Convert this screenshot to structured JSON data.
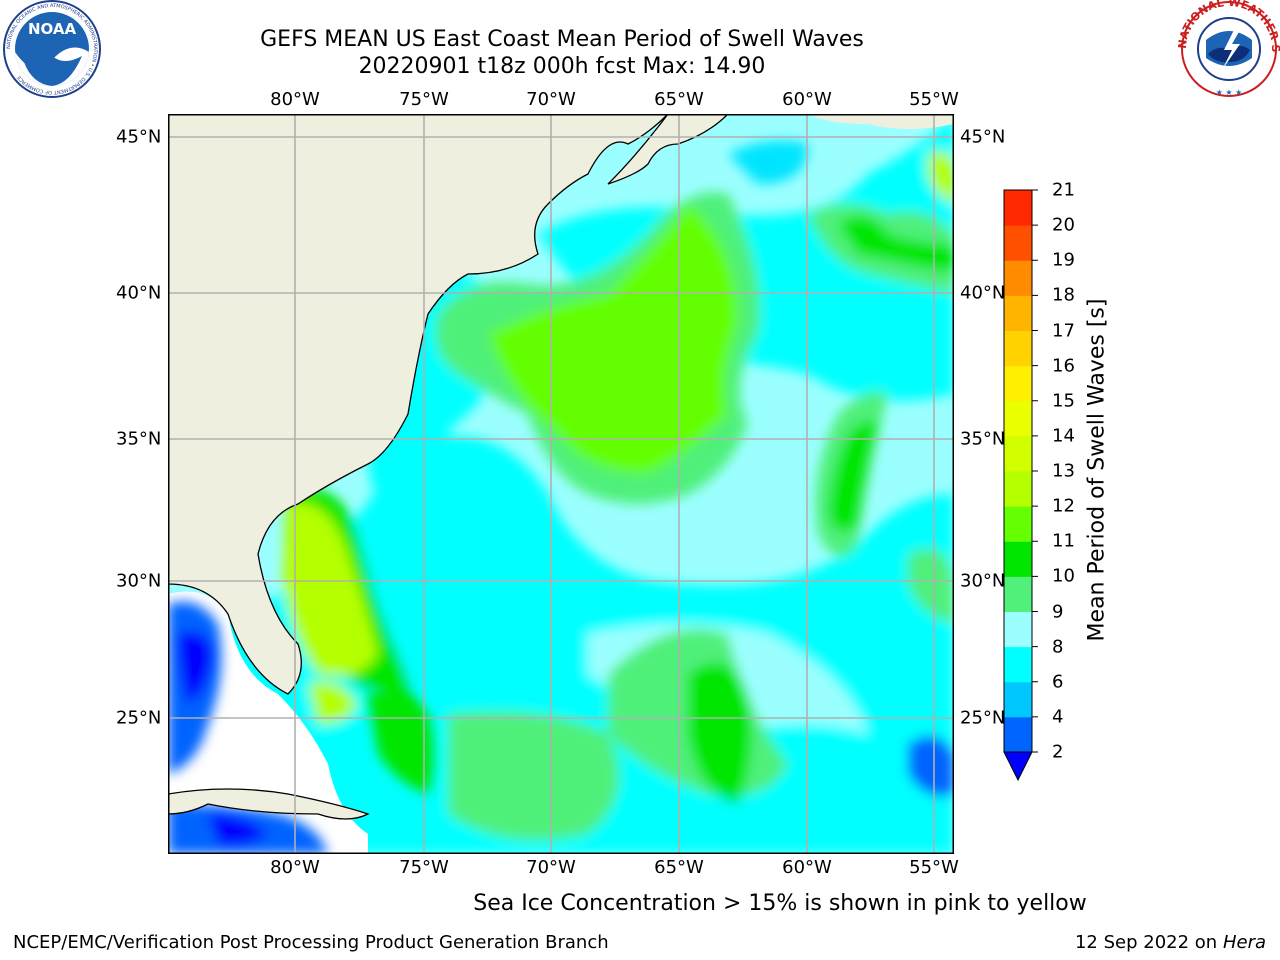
{
  "header": {
    "title_line1": "GEFS MEAN US East Coast Mean Period of Swell Waves",
    "title_line2": "20220901 t18z 000h fcst   Max: 14.90"
  },
  "logos": {
    "noaa": {
      "center_text": "NOAA",
      "ring_text": "NATIONAL OCEANIC AND ATMOSPHERIC ADMINISTRATION • U.S. DEPARTMENT OF COMMERCE"
    },
    "nws": {
      "ring_text": "NATIONAL WEATHER SERVICE"
    }
  },
  "map": {
    "lon_ticks": [
      "80°W",
      "75°W",
      "70°W",
      "65°W",
      "60°W",
      "55°W"
    ],
    "lat_ticks": [
      "45°N",
      "40°N",
      "35°N",
      "30°N",
      "25°N"
    ],
    "colors": {
      "land": "#efefdf",
      "grid": "#b0b0b0",
      "coast": "#000000",
      "missing": "#ffffff"
    }
  },
  "colorbar": {
    "label": "Mean Period of Swell Waves [s]",
    "levels": [
      "2",
      "4",
      "6",
      "8",
      "9",
      "10",
      "11",
      "12",
      "13",
      "14",
      "15",
      "16",
      "17",
      "18",
      "19",
      "20",
      "21"
    ],
    "colors": [
      "#0064ff",
      "#00c8ff",
      "#00ffff",
      "#9bffff",
      "#50f07a",
      "#00e600",
      "#64ff00",
      "#b4ff00",
      "#d2ff00",
      "#eaff00",
      "#fff000",
      "#ffd200",
      "#ffb400",
      "#ff8c00",
      "#ff5000",
      "#ff2800",
      "#ff0000"
    ],
    "under_color": "#0000ff"
  },
  "caption": "Sea Ice Concentration > 15% is shown in pink to yellow",
  "footer": {
    "left": "NCEP/EMC/Verification Post Processing Product Generation Branch",
    "date": "12 Sep 2022 on",
    "machine": "Hera"
  }
}
